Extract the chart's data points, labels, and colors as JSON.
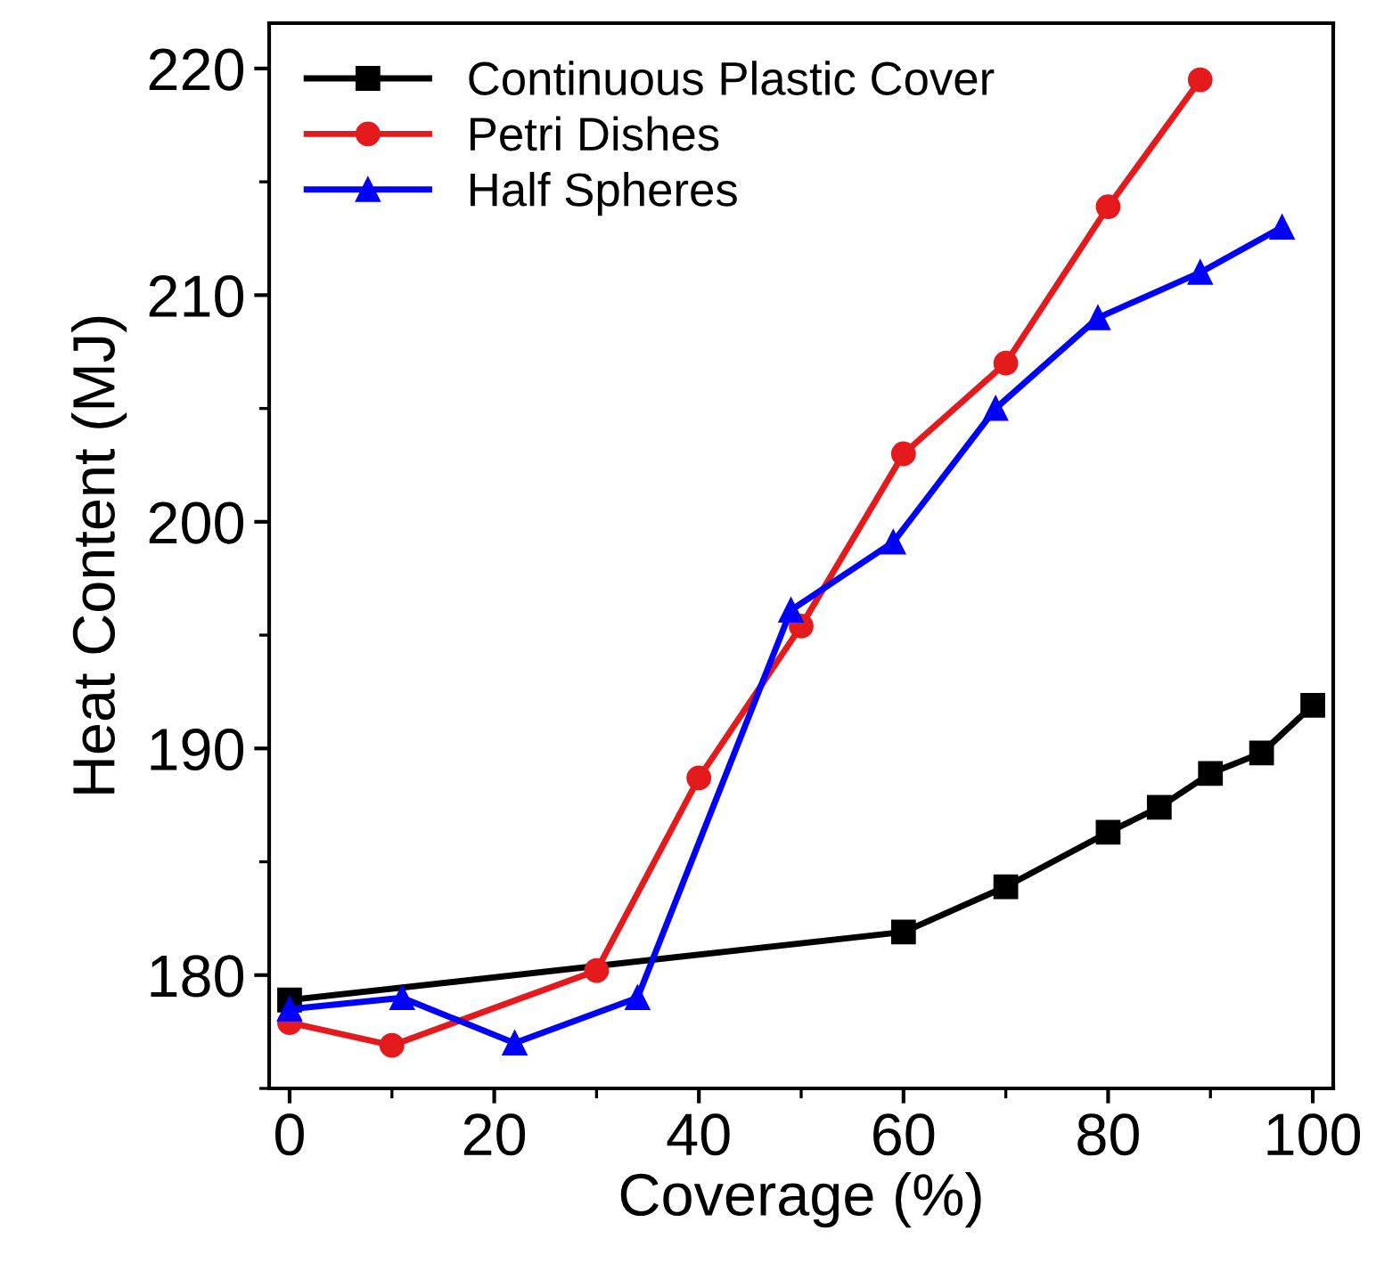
{
  "chart_data": {
    "type": "line",
    "xlabel": "Coverage (%)",
    "ylabel": "Heat Content (MJ)",
    "xlim": [
      -2,
      102
    ],
    "xticks": [
      0,
      20,
      40,
      60,
      80,
      100
    ],
    "ylim": [
      175,
      222
    ],
    "yticks": [
      180,
      190,
      200,
      210,
      220
    ],
    "grid": false,
    "legend": "top left",
    "series": [
      {
        "name": "Continuous Plastic Cover",
        "color": "#000000",
        "marker": "square",
        "x": [
          0,
          60,
          70,
          80,
          85,
          90,
          95,
          100
        ],
        "values": [
          178.9,
          181.9,
          183.9,
          186.3,
          187.4,
          188.9,
          189.8,
          191.9
        ]
      },
      {
        "name": "Petri Dishes",
        "color": "#e41a1c",
        "marker": "circle",
        "x": [
          0,
          10,
          30,
          40,
          50,
          60,
          70,
          80,
          89
        ],
        "values": [
          177.9,
          176.9,
          180.2,
          188.7,
          195.4,
          203.0,
          207.0,
          213.9,
          219.5
        ]
      },
      {
        "name": "Half Spheres",
        "color": "#0000ff",
        "marker": "triangle",
        "x": [
          0,
          11,
          22,
          34,
          49,
          59,
          69,
          79,
          89,
          97
        ],
        "values": [
          178.5,
          179.0,
          177.0,
          179.0,
          196.1,
          199.1,
          205.0,
          209.0,
          211.0,
          213.0
        ]
      }
    ]
  }
}
